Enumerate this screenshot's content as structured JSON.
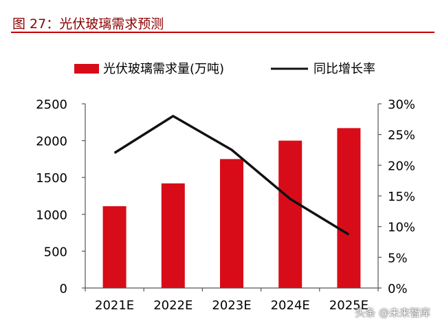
{
  "header": {
    "title": "图 27：光伏玻璃需求预测"
  },
  "colors": {
    "bar": "#d80c18",
    "line": "#111111",
    "title_rule": "#c00000",
    "title_text": "#8b0000"
  },
  "chart_data": {
    "type": "bar+line",
    "categories": [
      "2021E",
      "2022E",
      "2023E",
      "2024E",
      "2025E"
    ],
    "series": [
      {
        "name": "光伏玻璃需求量(万吨)",
        "type": "bar",
        "axis": "left",
        "values": [
          1110,
          1420,
          1750,
          2000,
          2170
        ]
      },
      {
        "name": "同比增长率",
        "type": "line",
        "axis": "right",
        "values": [
          0.22,
          0.28,
          0.225,
          0.145,
          0.087
        ]
      }
    ],
    "y_left": {
      "ylim": [
        0,
        2500
      ],
      "ticks": [
        "0",
        "500",
        "1000",
        "1500",
        "2000",
        "2500"
      ]
    },
    "y_right": {
      "ylim": [
        0,
        0.3
      ],
      "ticks": [
        "0%",
        "5%",
        "10%",
        "15%",
        "20%",
        "25%",
        "30%"
      ]
    },
    "legend_position": "top",
    "grid": false
  },
  "watermark": "头条 @未来智库"
}
